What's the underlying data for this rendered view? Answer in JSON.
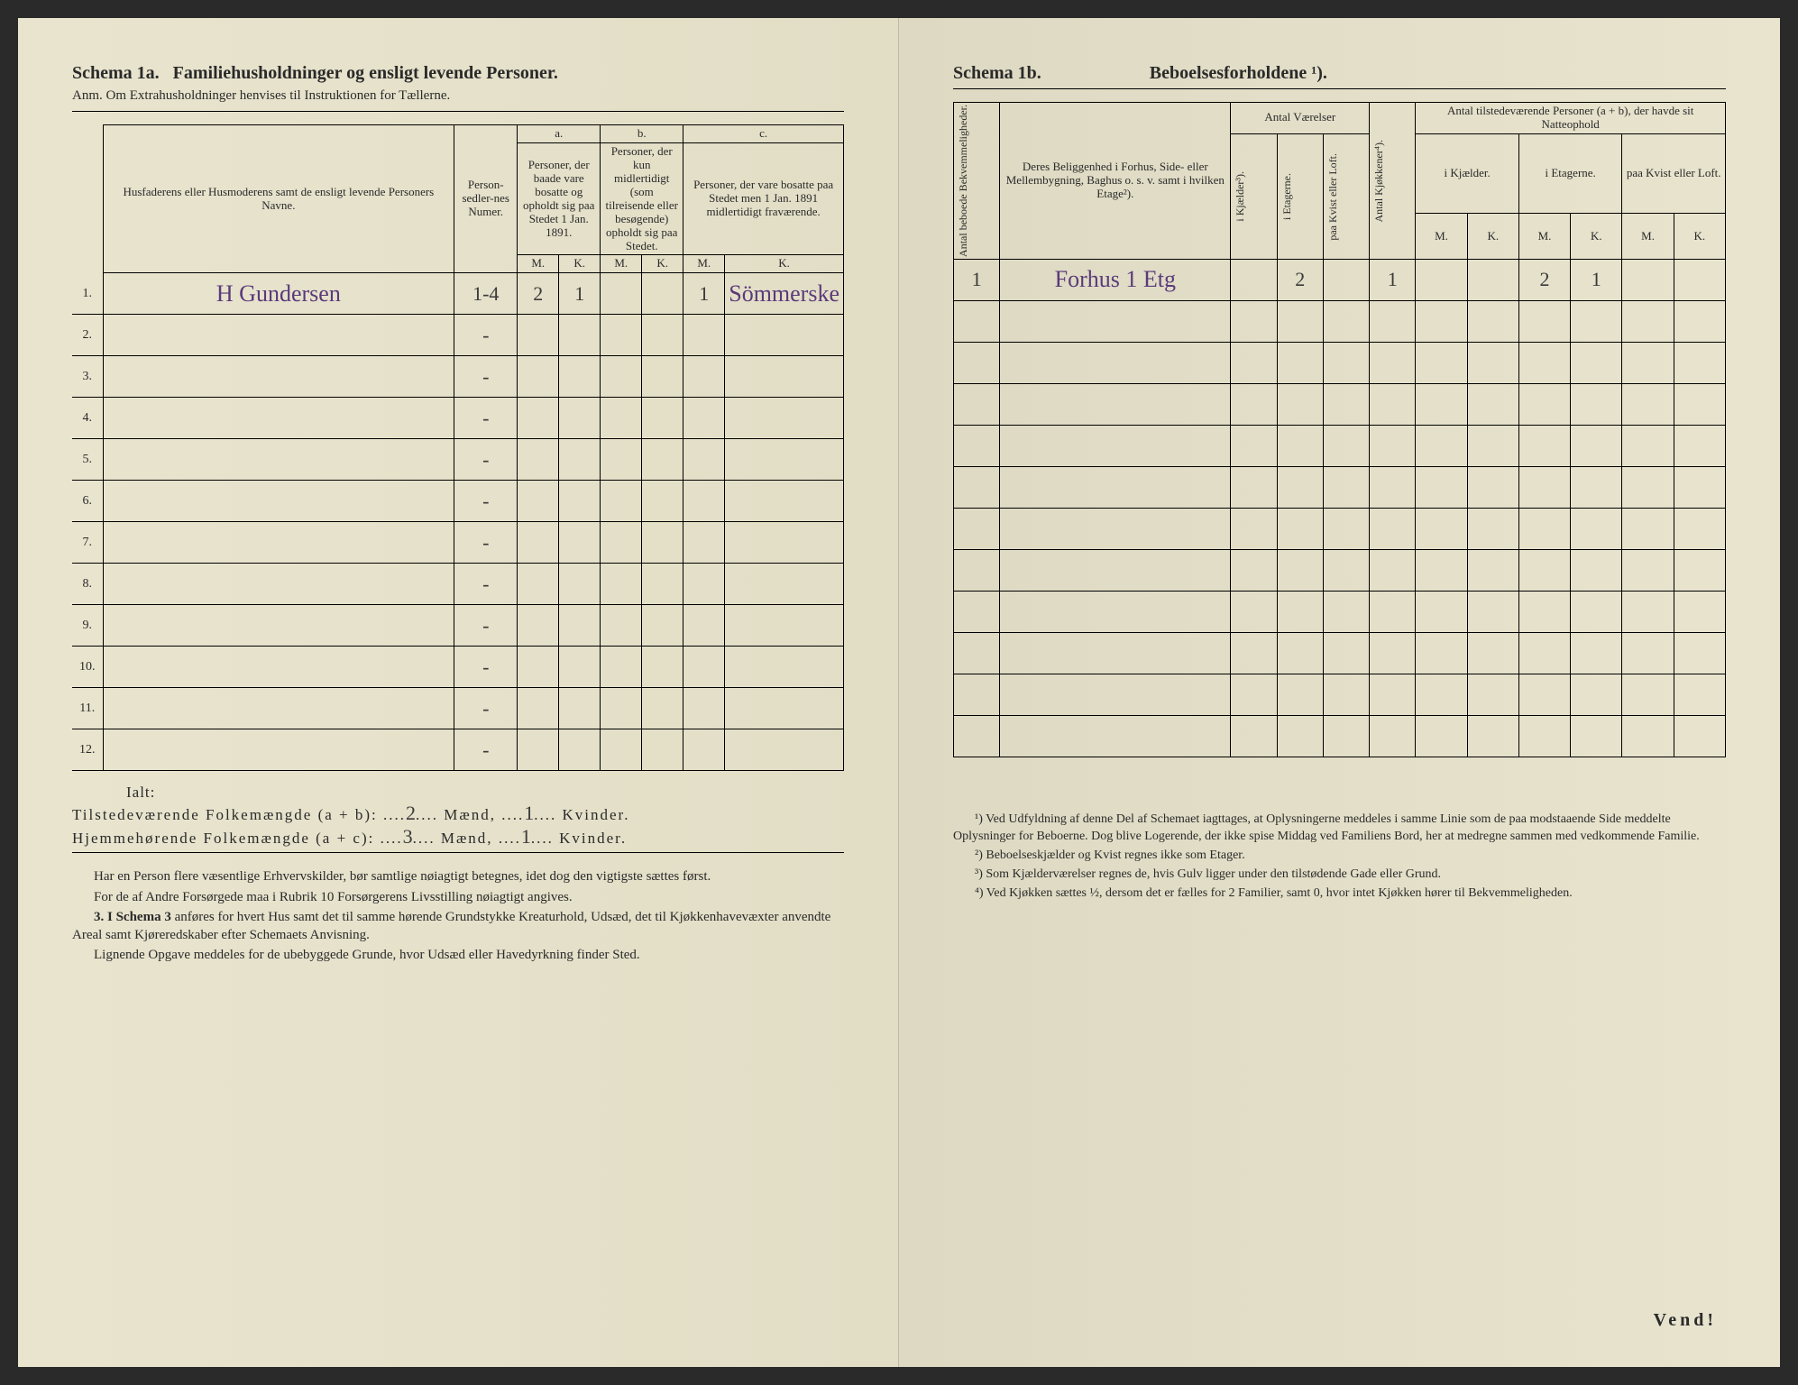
{
  "left": {
    "title_a": "Schema 1a.",
    "title_b": "Familiehusholdninger og ensligt levende Personer.",
    "anm": "Anm. Om Extrahusholdninger henvises til Instruktionen for Tællerne.",
    "head_name": "Husfaderens eller Husmoderens samt de ensligt levende Personers Navne.",
    "head_person": "Person-sedler-nes Numer.",
    "col_a": "a.",
    "col_b": "b.",
    "col_c": "c.",
    "col_a_text": "Personer, der baade vare bosatte og opholdt sig paa Stedet 1 Jan. 1891.",
    "col_b_text": "Personer, der kun midlertidigt (som tilreisende eller besøgende) opholdt sig paa Stedet.",
    "col_c_text": "Personer, der vare bosatte paa Stedet men 1 Jan. 1891 midlertidigt fraværende.",
    "M": "M.",
    "K": "K.",
    "rows": [
      {
        "n": "1.",
        "name": "H Gundersen",
        "person": "1-4",
        "aM": "2",
        "aK": "1",
        "bM": "",
        "bK": "",
        "cM": "1",
        "cK": "Sömmerske"
      },
      {
        "n": "2.",
        "name": "",
        "person": "-",
        "aM": "",
        "aK": "",
        "bM": "",
        "bK": "",
        "cM": "",
        "cK": ""
      },
      {
        "n": "3.",
        "name": "",
        "person": "-",
        "aM": "",
        "aK": "",
        "bM": "",
        "bK": "",
        "cM": "",
        "cK": ""
      },
      {
        "n": "4.",
        "name": "",
        "person": "-",
        "aM": "",
        "aK": "",
        "bM": "",
        "bK": "",
        "cM": "",
        "cK": ""
      },
      {
        "n": "5.",
        "name": "",
        "person": "-",
        "aM": "",
        "aK": "",
        "bM": "",
        "bK": "",
        "cM": "",
        "cK": ""
      },
      {
        "n": "6.",
        "name": "",
        "person": "-",
        "aM": "",
        "aK": "",
        "bM": "",
        "bK": "",
        "cM": "",
        "cK": ""
      },
      {
        "n": "7.",
        "name": "",
        "person": "-",
        "aM": "",
        "aK": "",
        "bM": "",
        "bK": "",
        "cM": "",
        "cK": ""
      },
      {
        "n": "8.",
        "name": "",
        "person": "-",
        "aM": "",
        "aK": "",
        "bM": "",
        "bK": "",
        "cM": "",
        "cK": ""
      },
      {
        "n": "9.",
        "name": "",
        "person": "-",
        "aM": "",
        "aK": "",
        "bM": "",
        "bK": "",
        "cM": "",
        "cK": ""
      },
      {
        "n": "10.",
        "name": "",
        "person": "-",
        "aM": "",
        "aK": "",
        "bM": "",
        "bK": "",
        "cM": "",
        "cK": ""
      },
      {
        "n": "11.",
        "name": "",
        "person": "-",
        "aM": "",
        "aK": "",
        "bM": "",
        "bK": "",
        "cM": "",
        "cK": ""
      },
      {
        "n": "12.",
        "name": "",
        "person": "-",
        "aM": "",
        "aK": "",
        "bM": "",
        "bK": "",
        "cM": "",
        "cK": ""
      }
    ],
    "ialt": "Ialt:",
    "sum1_label": "Tilstedeværende Folkemængde (a + b):",
    "sum1_m": "2",
    "sum_m_label": "Mænd,",
    "sum1_k": "1",
    "sum_k_label": "Kvinder.",
    "sum2_label": "Hjemmehørende Folkemængde (a + c):",
    "sum2_m": "3",
    "sum2_k": "1",
    "body1": "Har en Person flere væsentlige Erhvervskilder, bør samtlige nøiagtigt betegnes, idet dog den vigtigste sættes først.",
    "body2": "For de af Andre Forsørgede maa i Rubrik 10 Forsørgerens Livsstilling nøiagtigt angives.",
    "body3_lead": "3. I Schema 3",
    "body3": " anføres for hvert Hus samt det til samme hørende Grundstykke Kreaturhold, Udsæd, det til Kjøkkenhavevæxter anvendte Areal samt Kjøreredskaber efter Schemaets Anvisning.",
    "body4": "Lignende Opgave meddeles for de ubebyggede Grunde, hvor Udsæd eller Havedyrkning finder Sted."
  },
  "right": {
    "title_a": "Schema 1b.",
    "title_b": "Beboelsesforholdene ¹).",
    "head_antal_bek": "Antal beboede Bekvemmeligheder.",
    "head_loc": "Deres Beliggenhed i Forhus, Side- eller Mellembygning, Baghus o. s. v. samt i hvilken Etage²).",
    "head_rooms": "Antal Værelser",
    "head_rooms_k": "i Kjælder³).",
    "head_rooms_e": "i Etagerne.",
    "head_rooms_l": "paa Kvist eller Loft.",
    "head_kitchen": "Antal Kjøkkener⁴).",
    "head_persons": "Antal tilstedeværende Personer (a + b), der havde sit Natteophold",
    "head_p_k": "i Kjælder.",
    "head_p_e": "i Etagerne.",
    "head_p_l": "paa Kvist eller Loft.",
    "M": "M.",
    "K": "K.",
    "rows": [
      {
        "bek": "1",
        "loc": "Forhus 1 Etg",
        "rk": "",
        "re": "2",
        "rl": "",
        "kit": "1",
        "pkM": "",
        "pkK": "",
        "peM": "2",
        "peK": "1",
        "plM": "",
        "plK": ""
      },
      {
        "bek": "",
        "loc": "",
        "rk": "",
        "re": "",
        "rl": "",
        "kit": "",
        "pkM": "",
        "pkK": "",
        "peM": "",
        "peK": "",
        "plM": "",
        "plK": ""
      },
      {
        "bek": "",
        "loc": "",
        "rk": "",
        "re": "",
        "rl": "",
        "kit": "",
        "pkM": "",
        "pkK": "",
        "peM": "",
        "peK": "",
        "plM": "",
        "plK": ""
      },
      {
        "bek": "",
        "loc": "",
        "rk": "",
        "re": "",
        "rl": "",
        "kit": "",
        "pkM": "",
        "pkK": "",
        "peM": "",
        "peK": "",
        "plM": "",
        "plK": ""
      },
      {
        "bek": "",
        "loc": "",
        "rk": "",
        "re": "",
        "rl": "",
        "kit": "",
        "pkM": "",
        "pkK": "",
        "peM": "",
        "peK": "",
        "plM": "",
        "plK": ""
      },
      {
        "bek": "",
        "loc": "",
        "rk": "",
        "re": "",
        "rl": "",
        "kit": "",
        "pkM": "",
        "pkK": "",
        "peM": "",
        "peK": "",
        "plM": "",
        "plK": ""
      },
      {
        "bek": "",
        "loc": "",
        "rk": "",
        "re": "",
        "rl": "",
        "kit": "",
        "pkM": "",
        "pkK": "",
        "peM": "",
        "peK": "",
        "plM": "",
        "plK": ""
      },
      {
        "bek": "",
        "loc": "",
        "rk": "",
        "re": "",
        "rl": "",
        "kit": "",
        "pkM": "",
        "pkK": "",
        "peM": "",
        "peK": "",
        "plM": "",
        "plK": ""
      },
      {
        "bek": "",
        "loc": "",
        "rk": "",
        "re": "",
        "rl": "",
        "kit": "",
        "pkM": "",
        "pkK": "",
        "peM": "",
        "peK": "",
        "plM": "",
        "plK": ""
      },
      {
        "bek": "",
        "loc": "",
        "rk": "",
        "re": "",
        "rl": "",
        "kit": "",
        "pkM": "",
        "pkK": "",
        "peM": "",
        "peK": "",
        "plM": "",
        "plK": ""
      },
      {
        "bek": "",
        "loc": "",
        "rk": "",
        "re": "",
        "rl": "",
        "kit": "",
        "pkM": "",
        "pkK": "",
        "peM": "",
        "peK": "",
        "plM": "",
        "plK": ""
      },
      {
        "bek": "",
        "loc": "",
        "rk": "",
        "re": "",
        "rl": "",
        "kit": "",
        "pkM": "",
        "pkK": "",
        "peM": "",
        "peK": "",
        "plM": "",
        "plK": ""
      }
    ],
    "fn1": "¹) Ved Udfyldning af denne Del af Schemaet iagttages, at Oplysningerne meddeles i samme Linie som de paa modstaaende Side meddelte Oplysninger for Beboerne. Dog blive Logerende, der ikke spise Middag ved Familiens Bord, her at medregne sammen med vedkommende Familie.",
    "fn2": "²) Beboelseskjælder og Kvist regnes ikke som Etager.",
    "fn3": "³) Som Kjælderværelser regnes de, hvis Gulv ligger under den tilstødende Gade eller Grund.",
    "fn4": "⁴) Ved Kjøkken sættes ½, dersom det er fælles for 2 Familier, samt 0, hvor intet Kjøkken hører til Bekvemmeligheden.",
    "vend": "Vend!"
  }
}
